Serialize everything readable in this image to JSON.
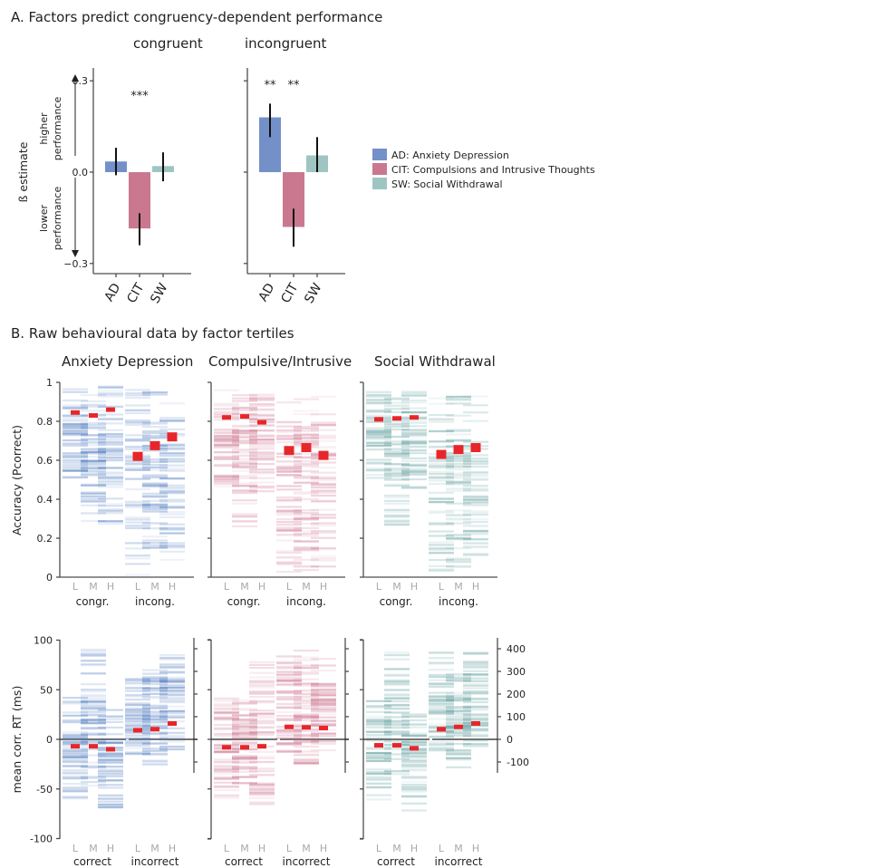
{
  "colors": {
    "AD": "#7390c9",
    "CIT": "#c97890",
    "SW": "#9fc5c3",
    "AD_strip": "#4a78bf",
    "CIT_strip": "#cc6f8c",
    "SW_strip": "#5d9c9a",
    "mean_marker": "#e8262a",
    "text": "#231f20",
    "lmh": "#a7a9ac"
  },
  "panelA": {
    "title": "A. Factors predict congruency-dependent performance",
    "ylabel": "ß estimate",
    "arrow_up_label": [
      "higher",
      "performance"
    ],
    "arrow_down_label": [
      "lower",
      "performance"
    ],
    "legend": [
      {
        "key": "AD",
        "label": "AD: Anxiety Depression"
      },
      {
        "key": "CIT",
        "label": "CIT: Compulsions and Intrusive  Thoughts"
      },
      {
        "key": "SW",
        "label": "SW: Social Withdrawal"
      }
    ]
  },
  "panelB": {
    "title": "B. Raw behavioural data by factor tertiles",
    "tertile_labels": [
      "L",
      "M",
      "H"
    ]
  },
  "chart_data": [
    {
      "type": "bar",
      "title": "congruent",
      "categories": [
        "AD",
        "CIT",
        "SW"
      ],
      "values": [
        0.035,
        -0.185,
        0.02
      ],
      "error_low": [
        -0.01,
        -0.24,
        -0.03
      ],
      "error_high": [
        0.08,
        -0.135,
        0.065
      ],
      "significance": [
        "",
        "***",
        ""
      ],
      "ylabel": "ß estimate",
      "yticks": [
        "0.3",
        "0.0",
        "−0.3"
      ],
      "ytick_values": [
        0.3,
        0.0,
        -0.3
      ],
      "ylim": [
        -0.33,
        0.3
      ]
    },
    {
      "type": "bar",
      "title": "incongruent",
      "categories": [
        "AD",
        "CIT",
        "SW"
      ],
      "values": [
        0.18,
        -0.18,
        0.055
      ],
      "error_low": [
        0.115,
        -0.245,
        0.0
      ],
      "error_high": [
        0.225,
        -0.12,
        0.115
      ],
      "significance": [
        "**",
        "**",
        ""
      ],
      "ytick_values": [
        0.3,
        0.0,
        -0.3
      ],
      "ylim": [
        -0.33,
        0.3
      ]
    },
    {
      "type": "scatter",
      "title": "Anxiety Depression",
      "factor": "AD",
      "ylabel": "Accuracy (Pcorrect)",
      "yticks": [
        "1",
        "0.8",
        "0.6",
        "0.4",
        "0.2",
        "0"
      ],
      "ytick_values": [
        1,
        0.8,
        0.6,
        0.4,
        0.2,
        0
      ],
      "ylim": [
        0,
        1
      ],
      "groups": [
        "congr.",
        "incong."
      ],
      "x": [
        "L",
        "M",
        "H",
        "L",
        "M",
        "H"
      ],
      "means": [
        0.845,
        0.83,
        0.86,
        0.62,
        0.675,
        0.72
      ],
      "range": [
        [
          0.5,
          0.98
        ],
        [
          0.28,
          0.98
        ],
        [
          0.27,
          0.98
        ],
        [
          0.0,
          0.97
        ],
        [
          0.05,
          0.95
        ],
        [
          0.02,
          0.97
        ]
      ]
    },
    {
      "type": "scatter",
      "title": "Compulsive/Intrusive",
      "factor": "CIT",
      "ylim": [
        0,
        1
      ],
      "groups": [
        "congr.",
        "incong."
      ],
      "x": [
        "L",
        "M",
        "H",
        "L",
        "M",
        "H"
      ],
      "means": [
        0.82,
        0.825,
        0.795,
        0.65,
        0.665,
        0.625
      ],
      "range": [
        [
          0.46,
          0.96
        ],
        [
          0.26,
          0.96
        ],
        [
          0.44,
          0.96
        ],
        [
          0.0,
          0.94
        ],
        [
          0.03,
          0.94
        ],
        [
          0.01,
          0.93
        ]
      ]
    },
    {
      "type": "scatter",
      "title": "Social Withdrawal",
      "factor": "SW",
      "ylim": [
        0,
        1
      ],
      "groups": [
        "congr.",
        "incong."
      ],
      "x": [
        "L",
        "M",
        "H",
        "L",
        "M",
        "H"
      ],
      "means": [
        0.81,
        0.815,
        0.82,
        0.63,
        0.655,
        0.665
      ],
      "range": [
        [
          0.5,
          0.96
        ],
        [
          0.26,
          0.96
        ],
        [
          0.43,
          0.96
        ],
        [
          0.02,
          0.94
        ],
        [
          0.04,
          0.95
        ],
        [
          0.01,
          0.93
        ]
      ]
    },
    {
      "type": "scatter",
      "title": "Anxiety Depression RT",
      "factor": "AD",
      "ylabel": "mean corr. RT (ms)",
      "yticks": [
        "100",
        "50",
        "0",
        "-50",
        "-100"
      ],
      "ytick_values": [
        100,
        50,
        0,
        -50,
        -100
      ],
      "ylim": [
        -100,
        100
      ],
      "y2ticks": [
        "400",
        "300",
        "200",
        "100",
        "0",
        "-100"
      ],
      "y2tick_values": [
        400,
        300,
        200,
        100,
        0,
        -100
      ],
      "groups": [
        "correct",
        "incorrect"
      ],
      "x": [
        "L",
        "M",
        "H",
        "L",
        "M",
        "H"
      ],
      "means_correct_ms": [
        -7,
        -7,
        -10
      ],
      "means_incorrect_ms_right_axis": [
        40,
        45,
        70
      ],
      "range_correct_ms": [
        [
          -62,
          42
        ],
        [
          -47,
          91
        ],
        [
          -71,
          31
        ]
      ],
      "range_incorrect_ms_right_axis": [
        [
          -70,
          275
        ],
        [
          -120,
          315
        ],
        [
          -65,
          375
        ]
      ]
    },
    {
      "type": "scatter",
      "title": "Compulsive/Intrusive RT",
      "factor": "CIT",
      "ylim": [
        -100,
        100
      ],
      "groups": [
        "correct",
        "incorrect"
      ],
      "x": [
        "L",
        "M",
        "H",
        "L",
        "M",
        "H"
      ],
      "means_correct_ms": [
        -8,
        -8,
        -7
      ],
      "means_incorrect_ms_right_axis": [
        55,
        53,
        50
      ],
      "range_correct_ms": [
        [
          -61,
          42
        ],
        [
          -47,
          42
        ],
        [
          -72,
          91
        ]
      ],
      "range_incorrect_ms_right_axis": [
        [
          -75,
          395
        ],
        [
          -125,
          410
        ],
        [
          -55,
          360
        ]
      ]
    },
    {
      "type": "scatter",
      "title": "Social Withdrawal RT",
      "factor": "SW",
      "ylim": [
        -100,
        100
      ],
      "groups": [
        "correct",
        "incorrect"
      ],
      "x": [
        "L",
        "M",
        "H",
        "L",
        "M",
        "H"
      ],
      "means_correct_ms": [
        -6,
        -6,
        -9
      ],
      "means_incorrect_ms_right_axis": [
        45,
        55,
        70
      ],
      "range_correct_ms": [
        [
          -62,
          42
        ],
        [
          -37,
          91
        ],
        [
          -72,
          31
        ]
      ],
      "range_incorrect_ms_right_axis": [
        [
          -65,
          400
        ],
        [
          -125,
          305
        ],
        [
          -60,
          420
        ]
      ]
    }
  ]
}
